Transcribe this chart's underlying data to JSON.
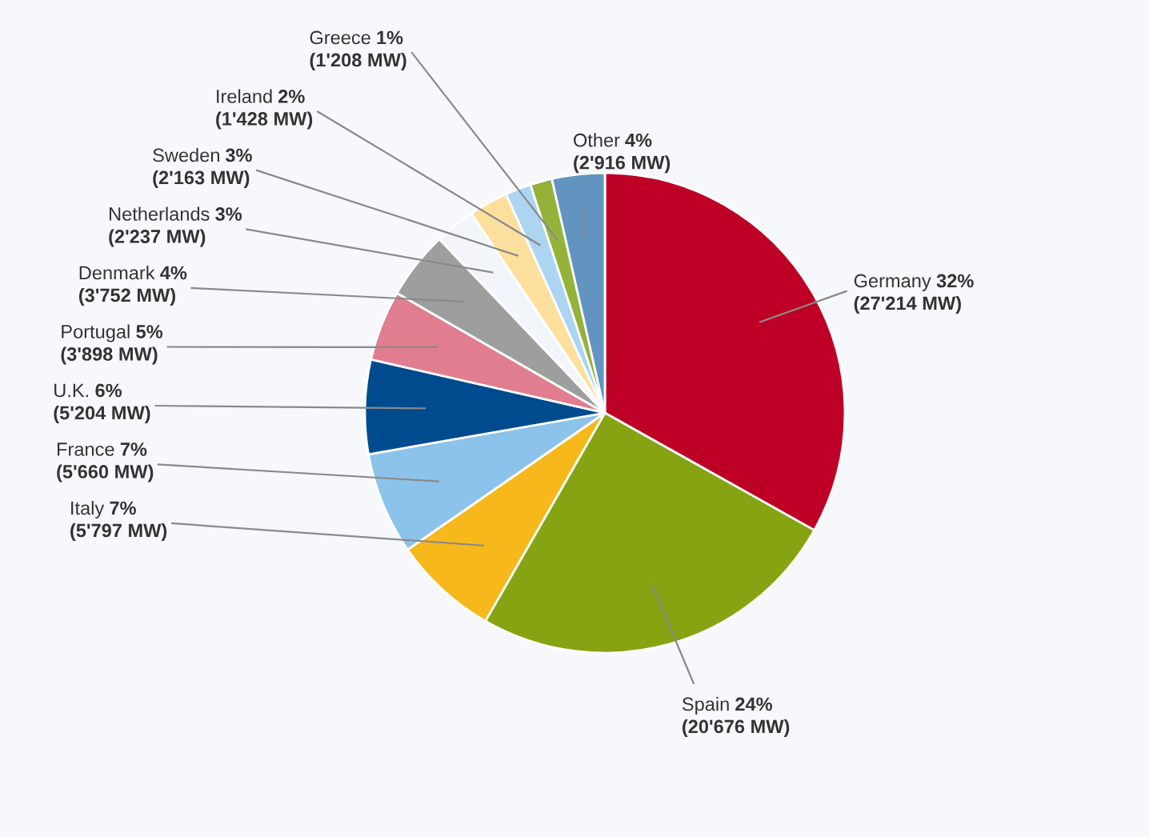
{
  "chart_data": {
    "type": "pie",
    "categories": [
      "Germany 32%",
      "Spain 24%",
      "Italy 7%",
      "France 7%",
      "U.K. 6%",
      "Portugal 5%",
      "Denmark 4%",
      "Netherlands 3%",
      "Sweden 3%",
      "Ireland 2%",
      "Greece 1%",
      "Other 4%"
    ],
    "values": [
      27214,
      20676,
      5797,
      5660,
      5204,
      3898,
      3752,
      2237,
      2163,
      1428,
      1208,
      2916
    ],
    "colors": [
      "#be0027",
      "#86a312",
      "#f7b81b",
      "#8cc3ea",
      "#004b8d",
      "#e07d8f",
      "#9d9e9e",
      "#f2f6fa",
      "#fbdf9d",
      "#acd5f1",
      "#94b23a",
      "#6195c0"
    ],
    "value_labels": [
      "(27'214 MW)",
      "(20'676 MW)",
      "(5'797 MW)",
      "(5'660 MW)",
      "(5'204 MW)",
      "(3'898 MW)",
      "(3'752 MW)",
      "(2'237 MW)",
      "(2'163 MW)",
      "(1'428 MW)",
      "(1'208 MW)",
      "(2'916 MW)"
    ]
  }
}
